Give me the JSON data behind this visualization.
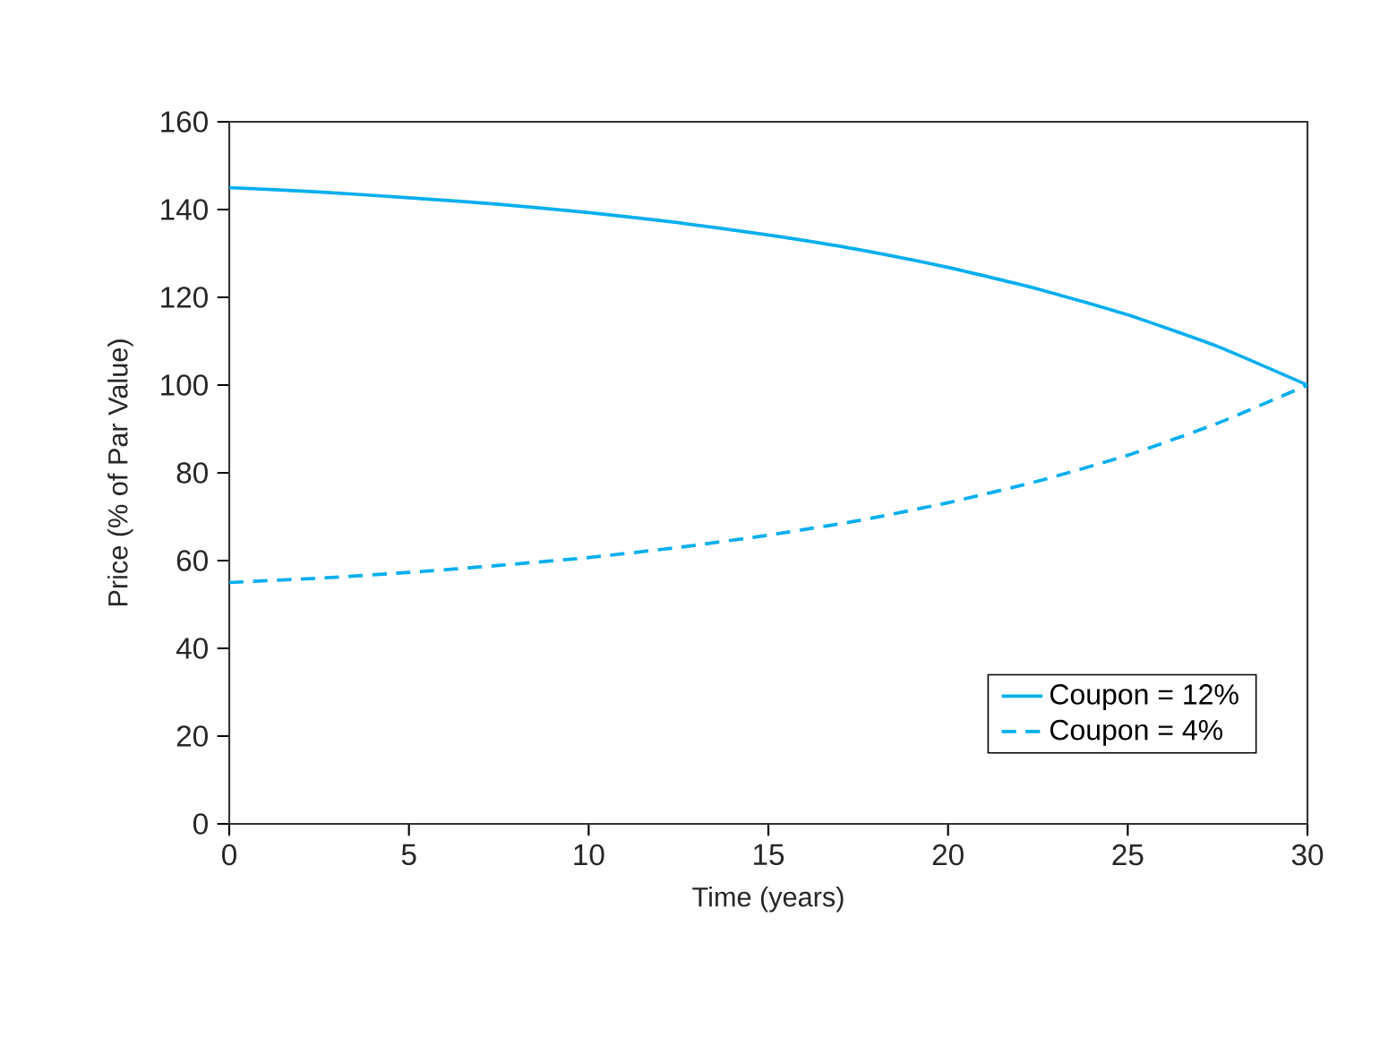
{
  "chart_data": {
    "type": "line",
    "xlabel": "Time (years)",
    "ylabel": "Price (% of Par Value)",
    "x": [
      0,
      2.5,
      5,
      7.5,
      10,
      12.5,
      15,
      17.5,
      20,
      22.5,
      25,
      27.5,
      30
    ],
    "series": [
      {
        "name": "Coupon = 12%",
        "color": "#00aeef",
        "line_style": "solid",
        "values": [
          145.0,
          144.0,
          142.7,
          141.2,
          139.3,
          137.0,
          134.2,
          130.9,
          126.8,
          121.9,
          116.0,
          108.8,
          100.0
        ]
      },
      {
        "name": "Coupon = 4%",
        "color": "#00aeef",
        "line_style": "dashed",
        "values": [
          55.0,
          56.0,
          57.3,
          58.9,
          60.7,
          63.0,
          65.8,
          69.1,
          73.2,
          78.1,
          84.0,
          91.3,
          100.0
        ]
      }
    ],
    "xlim": [
      0,
      30
    ],
    "ylim": [
      0,
      160
    ],
    "xticks": [
      0,
      5,
      10,
      15,
      20,
      25,
      30
    ],
    "yticks": [
      0,
      20,
      40,
      60,
      80,
      100,
      120,
      140,
      160
    ],
    "grid": false,
    "legend": "bottom right",
    "marker": "none"
  }
}
